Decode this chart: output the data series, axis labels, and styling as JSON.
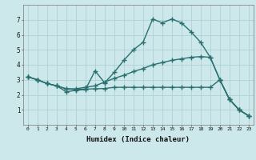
{
  "title": "",
  "xlabel": "Humidex (Indice chaleur)",
  "xlim": [
    -0.5,
    23.5
  ],
  "ylim": [
    0,
    8
  ],
  "xticks": [
    0,
    1,
    2,
    3,
    4,
    5,
    6,
    7,
    8,
    9,
    10,
    11,
    12,
    13,
    14,
    15,
    16,
    17,
    18,
    19,
    20,
    21,
    22,
    23
  ],
  "yticks": [
    1,
    2,
    3,
    4,
    5,
    6,
    7
  ],
  "bg_color": "#cde8ea",
  "grid_color": "#aacdd0",
  "line_color": "#2a7070",
  "line_width": 1.0,
  "marker": "+",
  "marker_size": 4,
  "series": [
    [
      3.2,
      3.0,
      2.75,
      2.6,
      2.2,
      2.3,
      2.35,
      3.6,
      2.8,
      3.5,
      4.3,
      5.0,
      5.5,
      7.05,
      6.8,
      7.05,
      6.8,
      6.2,
      5.5,
      4.5,
      3.0,
      1.7,
      1.0,
      0.6
    ],
    [
      3.2,
      3.0,
      2.75,
      2.6,
      2.4,
      2.4,
      2.5,
      2.6,
      2.85,
      3.1,
      3.3,
      3.55,
      3.75,
      4.0,
      4.15,
      4.3,
      4.4,
      4.5,
      4.55,
      4.5,
      3.0,
      1.7,
      1.0,
      0.6
    ],
    [
      3.2,
      3.0,
      2.75,
      2.6,
      2.4,
      2.35,
      2.38,
      2.4,
      2.42,
      2.5,
      2.5,
      2.5,
      2.5,
      2.5,
      2.5,
      2.5,
      2.5,
      2.5,
      2.5,
      2.5,
      3.0,
      1.7,
      1.0,
      0.6
    ]
  ]
}
